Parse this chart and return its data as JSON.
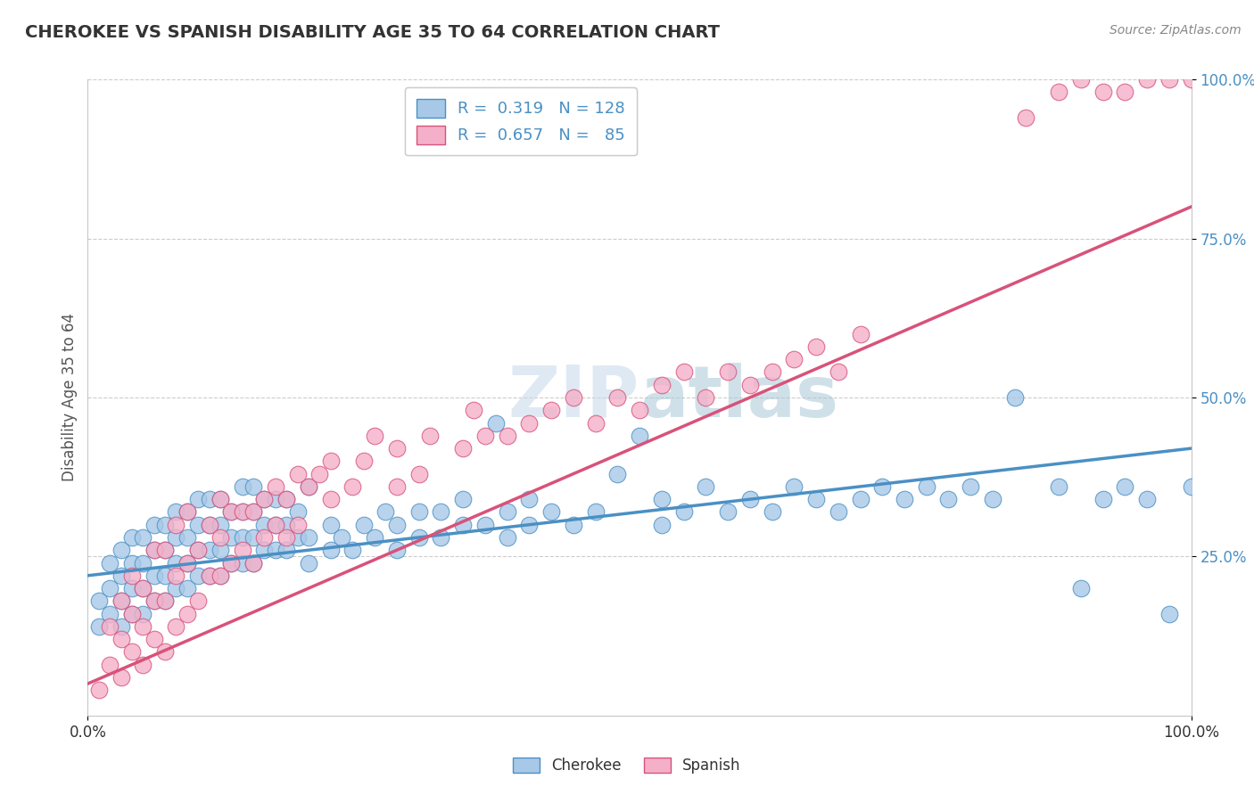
{
  "title": "CHEROKEE VS SPANISH DISABILITY AGE 35 TO 64 CORRELATION CHART",
  "source": "Source: ZipAtlas.com",
  "ylabel": "Disability Age 35 to 64",
  "xlim": [
    0.0,
    1.0
  ],
  "ylim": [
    0.0,
    1.0
  ],
  "cherokee_R": 0.319,
  "cherokee_N": 128,
  "spanish_R": 0.657,
  "spanish_N": 85,
  "cherokee_color": "#a8c8e8",
  "spanish_color": "#f4b0c8",
  "cherokee_line_color": "#4a90c4",
  "spanish_line_color": "#d8527a",
  "watermark_color": "#c8dced",
  "background_color": "#ffffff",
  "grid_color": "#cccccc",
  "title_color": "#333333",
  "cherokee_line": [
    0.0,
    0.22,
    1.0,
    0.42
  ],
  "spanish_line": [
    0.0,
    0.05,
    1.0,
    0.8
  ],
  "cherokee_scatter": [
    [
      0.01,
      0.14
    ],
    [
      0.01,
      0.18
    ],
    [
      0.02,
      0.16
    ],
    [
      0.02,
      0.2
    ],
    [
      0.02,
      0.24
    ],
    [
      0.03,
      0.14
    ],
    [
      0.03,
      0.18
    ],
    [
      0.03,
      0.22
    ],
    [
      0.03,
      0.26
    ],
    [
      0.04,
      0.16
    ],
    [
      0.04,
      0.2
    ],
    [
      0.04,
      0.24
    ],
    [
      0.04,
      0.28
    ],
    [
      0.05,
      0.16
    ],
    [
      0.05,
      0.2
    ],
    [
      0.05,
      0.24
    ],
    [
      0.05,
      0.28
    ],
    [
      0.06,
      0.18
    ],
    [
      0.06,
      0.22
    ],
    [
      0.06,
      0.26
    ],
    [
      0.06,
      0.3
    ],
    [
      0.07,
      0.18
    ],
    [
      0.07,
      0.22
    ],
    [
      0.07,
      0.26
    ],
    [
      0.07,
      0.3
    ],
    [
      0.08,
      0.2
    ],
    [
      0.08,
      0.24
    ],
    [
      0.08,
      0.28
    ],
    [
      0.08,
      0.32
    ],
    [
      0.09,
      0.2
    ],
    [
      0.09,
      0.24
    ],
    [
      0.09,
      0.28
    ],
    [
      0.09,
      0.32
    ],
    [
      0.1,
      0.22
    ],
    [
      0.1,
      0.26
    ],
    [
      0.1,
      0.3
    ],
    [
      0.1,
      0.34
    ],
    [
      0.11,
      0.22
    ],
    [
      0.11,
      0.26
    ],
    [
      0.11,
      0.3
    ],
    [
      0.11,
      0.34
    ],
    [
      0.12,
      0.22
    ],
    [
      0.12,
      0.26
    ],
    [
      0.12,
      0.3
    ],
    [
      0.12,
      0.34
    ],
    [
      0.13,
      0.24
    ],
    [
      0.13,
      0.28
    ],
    [
      0.13,
      0.32
    ],
    [
      0.14,
      0.24
    ],
    [
      0.14,
      0.28
    ],
    [
      0.14,
      0.32
    ],
    [
      0.14,
      0.36
    ],
    [
      0.15,
      0.24
    ],
    [
      0.15,
      0.28
    ],
    [
      0.15,
      0.32
    ],
    [
      0.15,
      0.36
    ],
    [
      0.16,
      0.26
    ],
    [
      0.16,
      0.3
    ],
    [
      0.16,
      0.34
    ],
    [
      0.17,
      0.26
    ],
    [
      0.17,
      0.3
    ],
    [
      0.17,
      0.34
    ],
    [
      0.18,
      0.26
    ],
    [
      0.18,
      0.3
    ],
    [
      0.18,
      0.34
    ],
    [
      0.19,
      0.28
    ],
    [
      0.19,
      0.32
    ],
    [
      0.2,
      0.24
    ],
    [
      0.2,
      0.28
    ],
    [
      0.2,
      0.36
    ],
    [
      0.22,
      0.26
    ],
    [
      0.22,
      0.3
    ],
    [
      0.23,
      0.28
    ],
    [
      0.24,
      0.26
    ],
    [
      0.25,
      0.3
    ],
    [
      0.26,
      0.28
    ],
    [
      0.27,
      0.32
    ],
    [
      0.28,
      0.26
    ],
    [
      0.28,
      0.3
    ],
    [
      0.3,
      0.28
    ],
    [
      0.3,
      0.32
    ],
    [
      0.32,
      0.28
    ],
    [
      0.32,
      0.32
    ],
    [
      0.34,
      0.3
    ],
    [
      0.34,
      0.34
    ],
    [
      0.36,
      0.3
    ],
    [
      0.37,
      0.46
    ],
    [
      0.38,
      0.28
    ],
    [
      0.38,
      0.32
    ],
    [
      0.4,
      0.3
    ],
    [
      0.4,
      0.34
    ],
    [
      0.42,
      0.32
    ],
    [
      0.44,
      0.3
    ],
    [
      0.46,
      0.32
    ],
    [
      0.48,
      0.38
    ],
    [
      0.5,
      0.44
    ],
    [
      0.52,
      0.3
    ],
    [
      0.52,
      0.34
    ],
    [
      0.54,
      0.32
    ],
    [
      0.56,
      0.36
    ],
    [
      0.58,
      0.32
    ],
    [
      0.6,
      0.34
    ],
    [
      0.62,
      0.32
    ],
    [
      0.64,
      0.36
    ],
    [
      0.66,
      0.34
    ],
    [
      0.68,
      0.32
    ],
    [
      0.7,
      0.34
    ],
    [
      0.72,
      0.36
    ],
    [
      0.74,
      0.34
    ],
    [
      0.76,
      0.36
    ],
    [
      0.78,
      0.34
    ],
    [
      0.8,
      0.36
    ],
    [
      0.82,
      0.34
    ],
    [
      0.84,
      0.5
    ],
    [
      0.88,
      0.36
    ],
    [
      0.9,
      0.2
    ],
    [
      0.92,
      0.34
    ],
    [
      0.94,
      0.36
    ],
    [
      0.96,
      0.34
    ],
    [
      0.98,
      0.16
    ],
    [
      1.0,
      0.36
    ]
  ],
  "spanish_scatter": [
    [
      0.01,
      0.04
    ],
    [
      0.02,
      0.08
    ],
    [
      0.02,
      0.14
    ],
    [
      0.03,
      0.06
    ],
    [
      0.03,
      0.12
    ],
    [
      0.03,
      0.18
    ],
    [
      0.04,
      0.1
    ],
    [
      0.04,
      0.16
    ],
    [
      0.04,
      0.22
    ],
    [
      0.05,
      0.08
    ],
    [
      0.05,
      0.14
    ],
    [
      0.05,
      0.2
    ],
    [
      0.06,
      0.12
    ],
    [
      0.06,
      0.18
    ],
    [
      0.06,
      0.26
    ],
    [
      0.07,
      0.1
    ],
    [
      0.07,
      0.18
    ],
    [
      0.07,
      0.26
    ],
    [
      0.08,
      0.14
    ],
    [
      0.08,
      0.22
    ],
    [
      0.08,
      0.3
    ],
    [
      0.09,
      0.16
    ],
    [
      0.09,
      0.24
    ],
    [
      0.09,
      0.32
    ],
    [
      0.1,
      0.18
    ],
    [
      0.1,
      0.26
    ],
    [
      0.11,
      0.22
    ],
    [
      0.11,
      0.3
    ],
    [
      0.12,
      0.22
    ],
    [
      0.12,
      0.28
    ],
    [
      0.12,
      0.34
    ],
    [
      0.13,
      0.24
    ],
    [
      0.13,
      0.32
    ],
    [
      0.14,
      0.26
    ],
    [
      0.14,
      0.32
    ],
    [
      0.15,
      0.24
    ],
    [
      0.15,
      0.32
    ],
    [
      0.16,
      0.28
    ],
    [
      0.16,
      0.34
    ],
    [
      0.17,
      0.3
    ],
    [
      0.17,
      0.36
    ],
    [
      0.18,
      0.28
    ],
    [
      0.18,
      0.34
    ],
    [
      0.19,
      0.3
    ],
    [
      0.19,
      0.38
    ],
    [
      0.2,
      0.36
    ],
    [
      0.21,
      0.38
    ],
    [
      0.22,
      0.34
    ],
    [
      0.22,
      0.4
    ],
    [
      0.24,
      0.36
    ],
    [
      0.25,
      0.4
    ],
    [
      0.26,
      0.44
    ],
    [
      0.28,
      0.36
    ],
    [
      0.28,
      0.42
    ],
    [
      0.3,
      0.38
    ],
    [
      0.31,
      0.44
    ],
    [
      0.34,
      0.42
    ],
    [
      0.35,
      0.48
    ],
    [
      0.36,
      0.44
    ],
    [
      0.38,
      0.44
    ],
    [
      0.4,
      0.46
    ],
    [
      0.42,
      0.48
    ],
    [
      0.44,
      0.5
    ],
    [
      0.46,
      0.46
    ],
    [
      0.48,
      0.5
    ],
    [
      0.5,
      0.48
    ],
    [
      0.52,
      0.52
    ],
    [
      0.54,
      0.54
    ],
    [
      0.56,
      0.5
    ],
    [
      0.58,
      0.54
    ],
    [
      0.6,
      0.52
    ],
    [
      0.62,
      0.54
    ],
    [
      0.64,
      0.56
    ],
    [
      0.66,
      0.58
    ],
    [
      0.68,
      0.54
    ],
    [
      0.7,
      0.6
    ],
    [
      0.85,
      0.94
    ],
    [
      0.88,
      0.98
    ],
    [
      0.9,
      1.0
    ],
    [
      0.92,
      0.98
    ],
    [
      0.94,
      0.98
    ],
    [
      0.96,
      1.0
    ],
    [
      0.98,
      1.0
    ],
    [
      1.0,
      1.0
    ]
  ]
}
